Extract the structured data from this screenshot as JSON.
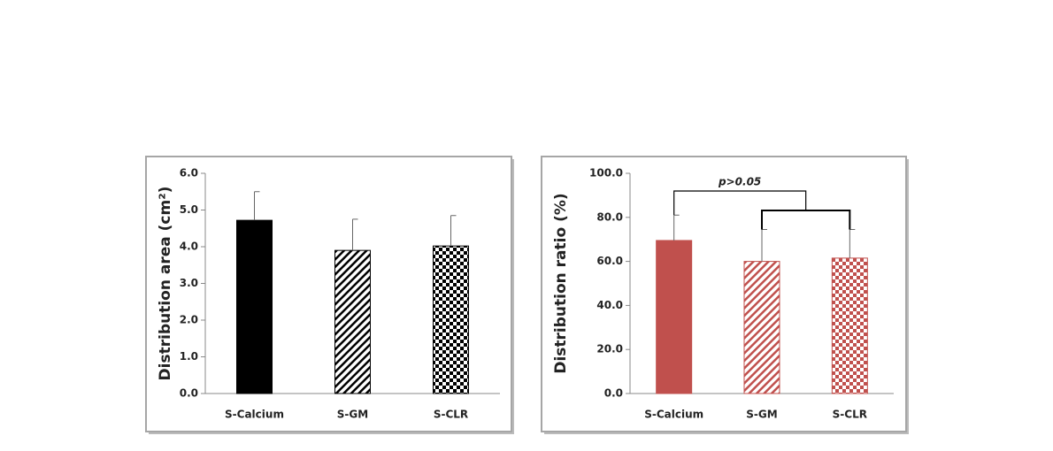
{
  "chart_data": [
    {
      "type": "bar",
      "ylabel": "Distribution area (cm²)",
      "categories": [
        "S-Calcium",
        "S-GM",
        "S-CLR"
      ],
      "values": [
        4.72,
        3.9,
        4.02
      ],
      "errors": [
        0.78,
        0.85,
        0.83
      ],
      "colors": [
        "#000000",
        "#000000",
        "#000000"
      ],
      "patterns": [
        "solid",
        "diagonal",
        "checker"
      ],
      "ylim": [
        0,
        6
      ],
      "yticks": [
        {
          "value": 0,
          "label": "0.0"
        },
        {
          "value": 1,
          "label": "1.0"
        },
        {
          "value": 2,
          "label": "2.0"
        },
        {
          "value": 3,
          "label": "3.0"
        },
        {
          "value": 4,
          "label": "4.0"
        },
        {
          "value": 5,
          "label": "5.0"
        },
        {
          "value": 6,
          "label": "6.0"
        }
      ]
    },
    {
      "type": "bar",
      "ylabel": "Distribution ratio (%)",
      "categories": [
        "S-Calcium",
        "S-GM",
        "S-CLR"
      ],
      "values": [
        69.5,
        60,
        61.5
      ],
      "errors": [
        11.5,
        14.5,
        13
      ],
      "colors": [
        "#c0504d",
        "#c0504d",
        "#c0504d"
      ],
      "patterns": [
        "solid",
        "diagonal",
        "checker"
      ],
      "annotation": "p>0.05",
      "ylim": [
        0,
        100
      ],
      "yticks": [
        {
          "value": 0,
          "label": "0.0"
        },
        {
          "value": 20,
          "label": "20.0"
        },
        {
          "value": 40,
          "label": "40.0"
        },
        {
          "value": 60,
          "label": "60.0"
        },
        {
          "value": 80,
          "label": "80.0"
        },
        {
          "value": 100,
          "label": "100.0"
        }
      ]
    }
  ]
}
